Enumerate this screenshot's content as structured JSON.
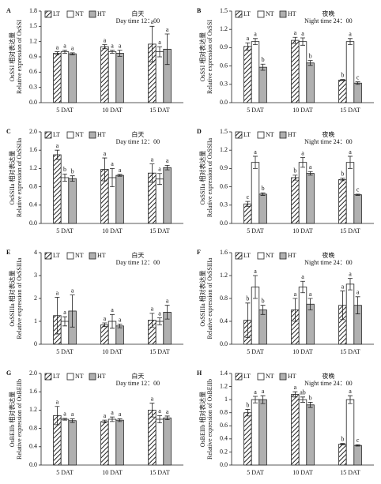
{
  "chart_data": [
    {
      "type": "bar",
      "panel": "A",
      "ylabel": "OsSSI 相对表达量",
      "ylabel_en": "Relative expression of OsSSI",
      "note": "白天",
      "note_en": "Day time 12：00",
      "categories": [
        "5 DAT",
        "10 DAT",
        "15 DAT"
      ],
      "ylim": [
        0,
        1.8
      ],
      "yticks": [
        {
          "value": 0,
          "label": "0.0"
        },
        0.3,
        0.6,
        0.9,
        1.2,
        1.5,
        1.8
      ],
      "series": [
        {
          "name": "LT",
          "color": "#ffffff",
          "hatch": true,
          "values": [
            0.97,
            1.1,
            1.15
          ],
          "errors": [
            0.03,
            0.04,
            0.35
          ],
          "letters": [
            "a",
            "a",
            "a"
          ]
        },
        {
          "name": "NT",
          "color": "#ffffff",
          "hatch": false,
          "values": [
            1.0,
            1.0,
            1.0
          ],
          "errors": [
            0.03,
            0.03,
            0.1
          ],
          "letters": [
            "a",
            "a",
            "a"
          ]
        },
        {
          "name": "HT",
          "color": "#b0b0b0",
          "hatch": false,
          "values": [
            0.96,
            0.97,
            1.05
          ],
          "errors": [
            0.02,
            0.06,
            0.3
          ],
          "letters": [
            "a",
            "a",
            "a"
          ]
        }
      ]
    },
    {
      "type": "bar",
      "panel": "B",
      "ylabel": "OsSSI 相对表达量",
      "ylabel_en": "Relative expression of OsSSI",
      "note": "夜晚",
      "note_en": "Night time 24：00",
      "categories": [
        "5 DAT",
        "10 DAT",
        "15 DAT"
      ],
      "ylim": [
        0,
        1.5
      ],
      "yticks": [
        {
          "value": 0,
          "label": "0.0"
        },
        0.3,
        0.6,
        0.9,
        1.2,
        1.5
      ],
      "series": [
        {
          "name": "LT",
          "color": "#ffffff",
          "hatch": true,
          "values": [
            0.92,
            1.02,
            0.37
          ],
          "errors": [
            0.06,
            0.05,
            0.01
          ],
          "letters": [
            "a",
            "a",
            "b"
          ]
        },
        {
          "name": "NT",
          "color": "#ffffff",
          "hatch": false,
          "values": [
            1.0,
            1.0,
            1.0
          ],
          "errors": [
            0.05,
            0.06,
            0.05
          ],
          "letters": [
            "a",
            "a",
            "a"
          ]
        },
        {
          "name": "HT",
          "color": "#b0b0b0",
          "hatch": false,
          "values": [
            0.58,
            0.65,
            0.32
          ],
          "errors": [
            0.05,
            0.04,
            0.02
          ],
          "letters": [
            "b",
            "b",
            "c"
          ]
        }
      ]
    },
    {
      "type": "bar",
      "panel": "C",
      "ylabel": "OsSSIIa 相对表达量",
      "ylabel_en": "Relative expression of OsSSIIa",
      "note": "白天",
      "note_en": "Day time 12：00",
      "categories": [
        "5 DAT",
        "10 DAT",
        "15 DAT"
      ],
      "ylim": [
        0,
        2
      ],
      "yticks": [
        {
          "value": 0,
          "label": "0.0"
        },
        0.4,
        0.8,
        1.2,
        1.6,
        {
          "value": 2,
          "label": "2.0"
        }
      ],
      "series": [
        {
          "name": "LT",
          "color": "#ffffff",
          "hatch": true,
          "values": [
            1.5,
            1.18,
            1.1
          ],
          "errors": [
            0.1,
            0.25,
            0.2
          ],
          "letters": [
            "a",
            "a",
            "a"
          ]
        },
        {
          "name": "NT",
          "color": "#ffffff",
          "hatch": false,
          "values": [
            1.0,
            1.0,
            0.97
          ],
          "errors": [
            0.08,
            0.2,
            0.12
          ],
          "letters": [
            "b",
            "a",
            "a"
          ]
        },
        {
          "name": "HT",
          "color": "#b0b0b0",
          "hatch": false,
          "values": [
            0.98,
            1.05,
            1.22
          ],
          "errors": [
            0.06,
            0.02,
            0.05
          ],
          "letters": [
            "b",
            "a",
            "a"
          ]
        }
      ]
    },
    {
      "type": "bar",
      "panel": "D",
      "ylabel": "OsSSIIa 相对表达量",
      "ylabel_en": "Relative expression of OsSSIIa",
      "note": "夜晚",
      "note_en": "Night time 24：00",
      "categories": [
        "5 DAT",
        "10 DAT",
        "15 DAT"
      ],
      "ylim": [
        0,
        1.5
      ],
      "yticks": [
        {
          "value": 0,
          "label": "0.0"
        },
        0.3,
        0.6,
        0.9,
        1.2,
        1.5
      ],
      "series": [
        {
          "name": "LT",
          "color": "#ffffff",
          "hatch": true,
          "values": [
            0.32,
            0.75,
            0.72
          ],
          "errors": [
            0.04,
            0.04,
            0.02
          ],
          "letters": [
            "c",
            "b",
            "b"
          ]
        },
        {
          "name": "NT",
          "color": "#ffffff",
          "hatch": false,
          "values": [
            1.0,
            1.0,
            1.0
          ],
          "errors": [
            0.1,
            0.08,
            0.1
          ],
          "letters": [
            "a",
            "a",
            "a"
          ]
        },
        {
          "name": "HT",
          "color": "#b0b0b0",
          "hatch": false,
          "values": [
            0.48,
            0.82,
            0.47
          ],
          "errors": [
            0.02,
            0.03,
            0.01
          ],
          "letters": [
            "b",
            "a",
            "c"
          ]
        }
      ]
    },
    {
      "type": "bar",
      "panel": "E",
      "ylabel": "OsSSIIIa 相对表达量",
      "ylabel_en": "Relative expression of OsSSIIIa",
      "note": "白天",
      "note_en": "Day time 12：00",
      "categories": [
        "5 DAT",
        "10 DAT",
        "15 DAT"
      ],
      "ylim": [
        0,
        4
      ],
      "yticks": [
        0,
        1,
        2,
        3,
        4
      ],
      "series": [
        {
          "name": "LT",
          "color": "#ffffff",
          "hatch": true,
          "values": [
            1.25,
            0.85,
            1.05
          ],
          "errors": [
            0.8,
            0.08,
            0.3
          ],
          "letters": [
            "a",
            "a",
            "a"
          ]
        },
        {
          "name": "NT",
          "color": "#ffffff",
          "hatch": false,
          "values": [
            1.0,
            1.0,
            1.0
          ],
          "errors": [
            0.2,
            0.3,
            0.15
          ],
          "letters": [
            "a",
            "a",
            "a"
          ]
        },
        {
          "name": "HT",
          "color": "#b0b0b0",
          "hatch": false,
          "values": [
            1.45,
            0.8,
            1.4
          ],
          "errors": [
            0.7,
            0.08,
            0.3
          ],
          "letters": [
            "a",
            "a",
            "a"
          ]
        }
      ]
    },
    {
      "type": "bar",
      "panel": "F",
      "ylabel": "OsSSIIIa 相对表达量",
      "ylabel_en": "Relative expression of OsSSIIIa",
      "note": "夜晚",
      "note_en": "Night time 24：00",
      "categories": [
        "5 DAT",
        "10 DAT",
        "15 DAT"
      ],
      "ylim": [
        0,
        1.6
      ],
      "yticks": [
        {
          "value": 0,
          "label": "0.0"
        },
        0.4,
        0.8,
        1.2,
        1.6
      ],
      "series": [
        {
          "name": "LT",
          "color": "#ffffff",
          "hatch": true,
          "values": [
            0.42,
            0.6,
            0.68
          ],
          "errors": [
            0.3,
            0.2,
            0.25
          ],
          "letters": [
            "b",
            "a",
            "a"
          ]
        },
        {
          "name": "NT",
          "color": "#ffffff",
          "hatch": false,
          "values": [
            1.0,
            1.0,
            1.05
          ],
          "errors": [
            0.2,
            0.1,
            0.1
          ],
          "letters": [
            "a",
            "a",
            "a"
          ]
        },
        {
          "name": "HT",
          "color": "#b0b0b0",
          "hatch": false,
          "values": [
            0.6,
            0.7,
            0.68
          ],
          "errors": [
            0.08,
            0.1,
            0.15
          ],
          "letters": [
            "b",
            "a",
            "a"
          ]
        }
      ]
    },
    {
      "type": "bar",
      "panel": "G",
      "ylabel": "OsBEIIb 相对表达量",
      "ylabel_en": "Relative expression of OsBEIIb",
      "note": "白天",
      "note_en": "Day time 12：00",
      "categories": [
        "5 DAT",
        "10 DAT",
        "15 DAT"
      ],
      "ylim": [
        0,
        2
      ],
      "yticks": [
        {
          "value": 0,
          "label": "0.0"
        },
        0.4,
        0.8,
        1.2,
        1.6,
        {
          "value": 2,
          "label": "2.0"
        }
      ],
      "series": [
        {
          "name": "LT",
          "color": "#ffffff",
          "hatch": true,
          "values": [
            1.08,
            0.95,
            1.2
          ],
          "errors": [
            0.2,
            0.03,
            0.15
          ],
          "letters": [
            "a",
            "a",
            "a"
          ]
        },
        {
          "name": "NT",
          "color": "#ffffff",
          "hatch": false,
          "values": [
            1.0,
            1.0,
            1.0
          ],
          "errors": [
            0.02,
            0.05,
            0.08
          ],
          "letters": [
            "a",
            "a",
            "a"
          ]
        },
        {
          "name": "HT",
          "color": "#b0b0b0",
          "hatch": false,
          "values": [
            0.97,
            0.98,
            1.03
          ],
          "errors": [
            0.04,
            0.03,
            0.04
          ],
          "letters": [
            "a",
            "a",
            "a"
          ]
        }
      ]
    },
    {
      "type": "bar",
      "panel": "H",
      "ylabel": "OsBEIIb 相对表达量",
      "ylabel_en": "Relative expression of OsBEIIb",
      "note": "夜晚",
      "note_en": "Night time 24：00",
      "categories": [
        "5 DAT",
        "10 DAT",
        "15 DAT"
      ],
      "ylim": [
        0,
        1.4
      ],
      "yticks": [
        {
          "value": 0,
          "label": "0.0"
        },
        0.2,
        0.4,
        0.6,
        0.8,
        1.0,
        1.2,
        1.4
      ],
      "series": [
        {
          "name": "LT",
          "color": "#ffffff",
          "hatch": true,
          "values": [
            0.8,
            1.08,
            0.32
          ],
          "errors": [
            0.05,
            0.04,
            0.01
          ],
          "letters": [
            "b",
            "a",
            "b"
          ]
        },
        {
          "name": "NT",
          "color": "#ffffff",
          "hatch": false,
          "values": [
            1.0,
            1.0,
            1.0
          ],
          "errors": [
            0.05,
            0.04,
            0.06
          ],
          "letters": [
            "a",
            "ab",
            "a"
          ]
        },
        {
          "name": "HT",
          "color": "#b0b0b0",
          "hatch": false,
          "values": [
            1.0,
            0.92,
            0.3
          ],
          "errors": [
            0.06,
            0.04,
            0.01
          ],
          "letters": [
            "a",
            "b",
            "c"
          ]
        }
      ]
    }
  ]
}
